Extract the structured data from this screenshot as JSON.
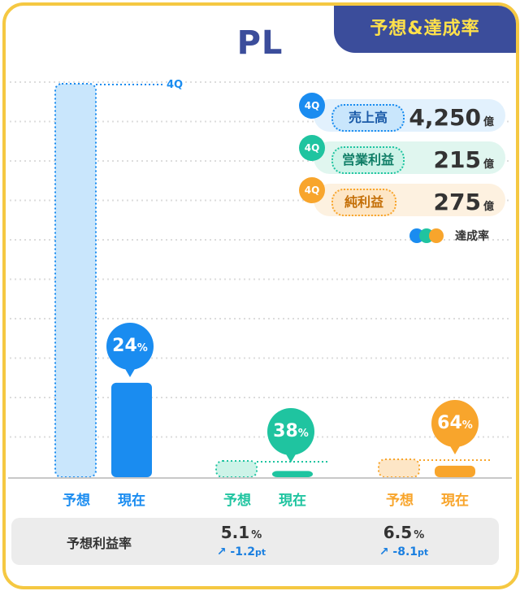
{
  "header": {
    "title": "PL",
    "tag": "予想&達成率"
  },
  "colors": {
    "navy": "#3b4d9b",
    "yellow": "#f5c842",
    "sales": "#1a8cf0",
    "sales_light": "#c9e6fc",
    "op": "#1fc4a0",
    "op_light": "#cdf3e8",
    "net": "#f8a52c",
    "net_light": "#fde6c6"
  },
  "chart_data": {
    "type": "bar",
    "title": "PL",
    "groups": [
      "売上高",
      "営業利益",
      "純利益"
    ],
    "categories": [
      "予想",
      "現在"
    ],
    "unit": "億",
    "forecast": [
      4250,
      215,
      275
    ],
    "current": [
      1020,
      82,
      176
    ],
    "achievement_pct": [
      24,
      38,
      64
    ],
    "forecast_marker_label": "4Q"
  },
  "legend": {
    "items": [
      {
        "period": "4Q",
        "name": "売上高",
        "value": "4,250",
        "unit": "億"
      },
      {
        "period": "4Q",
        "name": "営業利益",
        "value": "215",
        "unit": "億"
      },
      {
        "period": "4Q",
        "name": "純利益",
        "value": "275",
        "unit": "億"
      }
    ],
    "rate_label": "達成率"
  },
  "bubbles": [
    {
      "value": "24",
      "unit": "%"
    },
    {
      "value": "38",
      "unit": "%"
    },
    {
      "value": "64",
      "unit": "%"
    }
  ],
  "axis_labels": {
    "forecast": "予想",
    "current": "現在"
  },
  "margin": {
    "title": "予想利益率",
    "items": [
      {
        "value": "5.1",
        "unit": "%",
        "change_arrow": "↗",
        "change": "-1.2",
        "change_unit": "pt"
      },
      {
        "value": "6.5",
        "unit": "%",
        "change_arrow": "↗",
        "change": "-8.1",
        "change_unit": "pt"
      }
    ]
  }
}
